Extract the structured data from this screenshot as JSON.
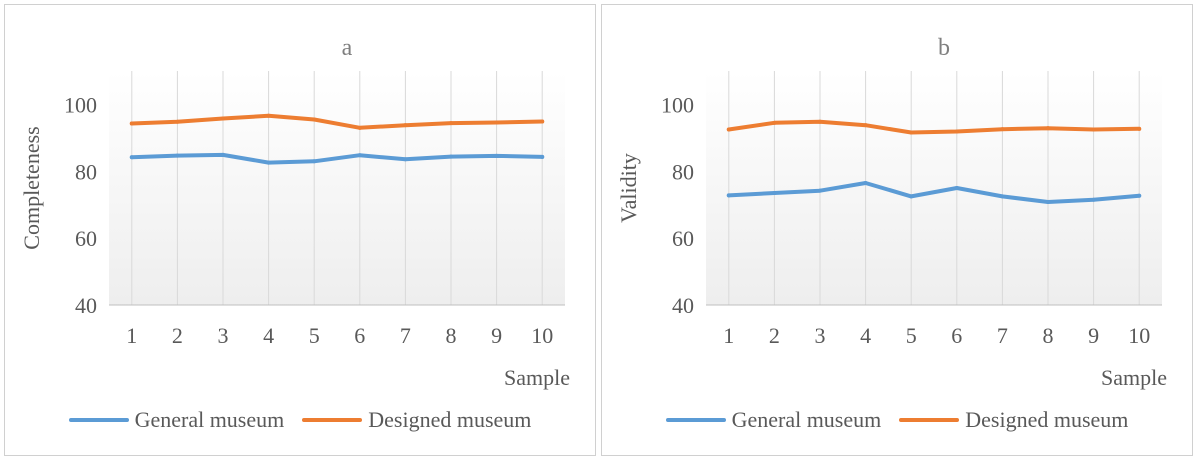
{
  "colors": {
    "general": "#5b9bd5",
    "designed": "#ed7d31",
    "grid": "#d9d9d9",
    "text": "#595959"
  },
  "chart_data": [
    {
      "type": "line",
      "title": "a",
      "xlabel": "Sample",
      "ylabel": "Completeness",
      "categories": [
        "1",
        "2",
        "3",
        "4",
        "5",
        "6",
        "7",
        "8",
        "9",
        "10"
      ],
      "ylim": [
        40,
        110
      ],
      "yticks": [
        "40",
        "60",
        "80",
        "100"
      ],
      "series": [
        {
          "name": "General museum",
          "key": "general",
          "values": [
            84.2,
            84.7,
            84.9,
            82.6,
            83.0,
            84.8,
            83.6,
            84.4,
            84.6,
            84.3
          ]
        },
        {
          "name": "Designed museum",
          "key": "designed",
          "values": [
            94.3,
            94.8,
            95.8,
            96.6,
            95.5,
            93.0,
            93.8,
            94.4,
            94.6,
            94.9
          ]
        }
      ],
      "legend": "bottom"
    },
    {
      "type": "line",
      "title": "b",
      "xlabel": "Sample",
      "ylabel": "Validity",
      "categories": [
        "1",
        "2",
        "3",
        "4",
        "5",
        "6",
        "7",
        "8",
        "9",
        "10"
      ],
      "ylim": [
        40,
        110
      ],
      "yticks": [
        "40",
        "60",
        "80",
        "100"
      ],
      "series": [
        {
          "name": "General museum",
          "key": "general",
          "values": [
            72.8,
            73.5,
            74.2,
            76.5,
            72.5,
            75.0,
            72.5,
            70.8,
            71.5,
            72.7
          ]
        },
        {
          "name": "Designed museum",
          "key": "designed",
          "values": [
            92.5,
            94.5,
            94.8,
            93.8,
            91.6,
            91.9,
            92.6,
            92.9,
            92.5,
            92.7
          ]
        }
      ],
      "legend": "bottom"
    }
  ]
}
